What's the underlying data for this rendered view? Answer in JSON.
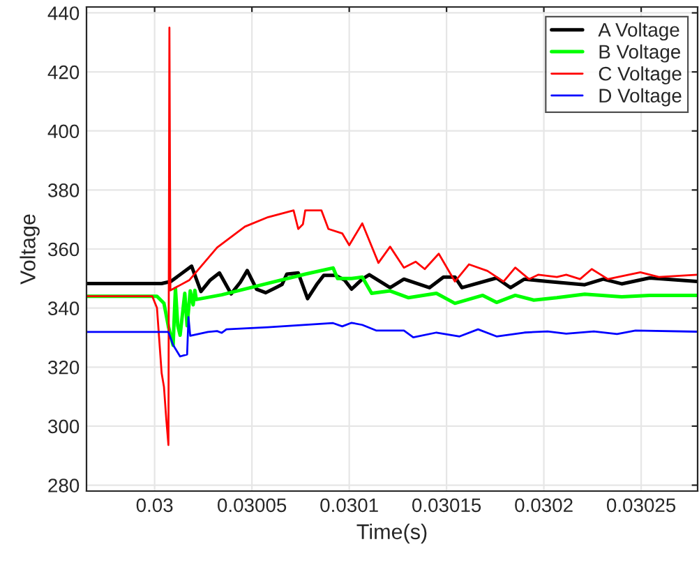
{
  "chart_data": {
    "type": "line",
    "xlabel": "Time(s)",
    "ylabel": "Voltage",
    "xlim": [
      0.029965,
      0.030279
    ],
    "ylim": [
      278,
      442
    ],
    "xticks": [
      0.03,
      0.03005,
      0.0301,
      0.03015,
      0.0302,
      0.03025
    ],
    "yticks": [
      280,
      300,
      320,
      340,
      360,
      380,
      400,
      420,
      440
    ],
    "grid": true,
    "legend": "top right",
    "line_style": "solid",
    "marker": "none",
    "series": [
      {
        "name": "A Voltage",
        "color": "#000000",
        "x": [
          0.029965,
          0.0300036,
          0.0300083,
          0.030019,
          0.0300238,
          0.0300286,
          0.0300333,
          0.0300393,
          0.030044,
          0.0300476,
          0.0300524,
          0.0300571,
          0.0300631,
          0.0300655,
          0.0300679,
          0.0300738,
          0.0300786,
          0.0300833,
          0.0300869,
          0.0300929,
          0.0300976,
          0.0301012,
          0.0301067,
          0.0301103,
          0.030121,
          0.0301281,
          0.0301412,
          0.0301484,
          0.0301543,
          0.0301579,
          0.0301757,
          0.0301829,
          0.03019,
          0.0302019,
          0.030221,
          0.0302305,
          0.03024,
          0.0302543,
          0.0302788
        ],
        "values": [
          348.3,
          348.3,
          349.0,
          354.2,
          345.6,
          349.5,
          351.9,
          344.8,
          348.7,
          352.7,
          346.4,
          345.2,
          347.2,
          348.0,
          351.5,
          351.9,
          343.2,
          348.0,
          351.1,
          351.1,
          349.5,
          346.4,
          349.8,
          351.3,
          346.9,
          349.8,
          346.9,
          350.5,
          350.5,
          346.9,
          350.2,
          346.9,
          349.8,
          349.0,
          347.9,
          349.8,
          348.2,
          350.2,
          349.0
        ]
      },
      {
        "name": "B Voltage",
        "color": "#00ff00",
        "x": [
          0.029965,
          0.0300012,
          0.0300048,
          0.0300071,
          0.0300095,
          0.0300107,
          0.0300119,
          0.0300131,
          0.0300155,
          0.0300167,
          0.0300183,
          0.0300198,
          0.0300207,
          0.0300214,
          0.0300345,
          0.0300583,
          0.0300774,
          0.0300917,
          0.030094,
          0.0301012,
          0.0301067,
          0.0301115,
          0.030121,
          0.0301305,
          0.0301448,
          0.0301543,
          0.0301686,
          0.0301757,
          0.0301853,
          0.0301948,
          0.0302067,
          0.030221,
          0.03024,
          0.0302543,
          0.0302788
        ],
        "values": [
          344.0,
          344.0,
          341.6,
          333.7,
          327.4,
          346.6,
          334.0,
          330.8,
          345.0,
          334.0,
          345.8,
          341.1,
          346.0,
          342.9,
          344.5,
          348.4,
          351.5,
          353.6,
          350.0,
          350.0,
          350.5,
          345.0,
          345.8,
          343.5,
          345.0,
          341.6,
          344.3,
          341.9,
          344.3,
          342.7,
          343.5,
          344.7,
          343.8,
          344.3,
          344.3
        ]
      },
      {
        "name": "C Voltage",
        "color": "#ff0000",
        "x": [
          0.029965,
          0.0299988,
          0.0300012,
          0.0300036,
          0.0300048,
          0.030006,
          0.0300071,
          0.0300076,
          0.0300081,
          0.0300179,
          0.0300321,
          0.0300464,
          0.0300583,
          0.0300714,
          0.0300738,
          0.0300762,
          0.0300774,
          0.0300857,
          0.0300893,
          0.0300964,
          0.0301,
          0.0301067,
          0.030115,
          0.030121,
          0.0301281,
          0.0301341,
          0.0301388,
          0.030146,
          0.0301543,
          0.0301615,
          0.030171,
          0.0301793,
          0.0301853,
          0.0301924,
          0.0301972,
          0.0302067,
          0.0302115,
          0.0302186,
          0.0302246,
          0.0302329,
          0.0302496,
          0.0302591,
          0.0302788
        ],
        "values": [
          344.0,
          344.0,
          340.1,
          318.0,
          313.3,
          302.3,
          293.6,
          435.0,
          346.0,
          349.5,
          360.5,
          367.6,
          370.8,
          373.1,
          366.8,
          368.4,
          373.1,
          373.1,
          366.8,
          365.3,
          361.3,
          368.7,
          355.3,
          360.8,
          353.7,
          355.7,
          353.2,
          358.4,
          349.0,
          354.8,
          352.6,
          349.0,
          353.7,
          349.8,
          351.3,
          350.5,
          351.3,
          349.8,
          353.2,
          349.8,
          352.1,
          350.5,
          351.3
        ]
      },
      {
        "name": "D Voltage",
        "color": "#0000ff",
        "x": [
          0.029965,
          0.0300071,
          0.0300095,
          0.0300131,
          0.0300167,
          0.0300174,
          0.0300183,
          0.0300274,
          0.0300321,
          0.0300345,
          0.0300369,
          0.0300583,
          0.0300917,
          0.0300964,
          0.0301012,
          0.0301067,
          0.0301138,
          0.0301281,
          0.0301329,
          0.0301448,
          0.0301567,
          0.0301662,
          0.0301757,
          0.03019,
          0.0302019,
          0.0302115,
          0.0302257,
          0.0302376,
          0.0302471,
          0.0302788
        ],
        "values": [
          331.9,
          331.9,
          327.5,
          323.6,
          324.3,
          336.9,
          330.6,
          331.9,
          332.2,
          331.6,
          332.8,
          333.5,
          334.9,
          333.8,
          335.0,
          334.3,
          332.4,
          332.4,
          330.1,
          331.7,
          330.4,
          332.8,
          330.4,
          331.7,
          332.1,
          331.3,
          332.1,
          331.2,
          332.4,
          332.0
        ]
      }
    ]
  }
}
